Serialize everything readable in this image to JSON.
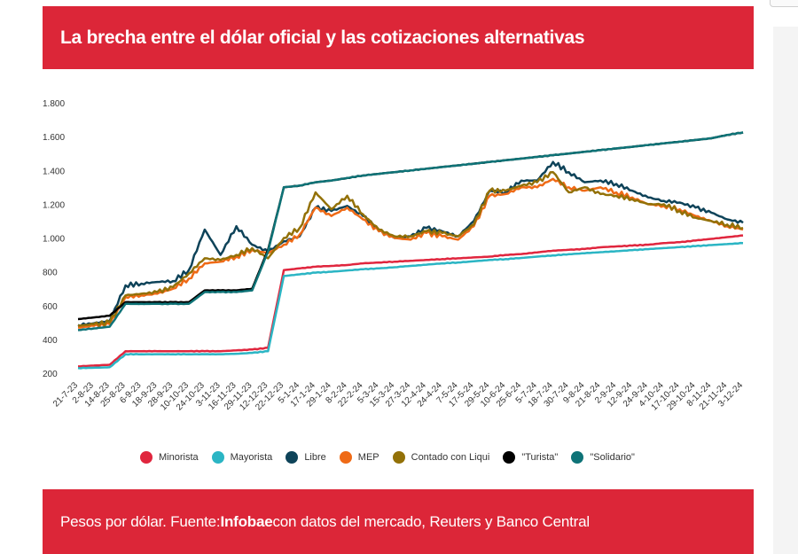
{
  "header": {
    "title": "La brecha entre el dólar oficial y las cotizaciones alternativas"
  },
  "footer": {
    "prefix": "Pesos por dólar. Fuente: ",
    "source": "Infobae",
    "suffix": " con datos del mercado, Reuters y Banco Central"
  },
  "chart_data": {
    "type": "line",
    "title": "La brecha entre el dólar oficial y las cotizaciones alternativas",
    "ylabel": "",
    "xlabel": "",
    "ylim": [
      200,
      1800
    ],
    "yticks": [
      200,
      400,
      600,
      800,
      1000,
      1200,
      1400,
      1600,
      1800
    ],
    "ytick_labels": [
      "200",
      "400",
      "600",
      "800",
      "1.000",
      "1.200",
      "1.400",
      "1.600",
      "1.800"
    ],
    "categories": [
      "21-7-23",
      "2-8-23",
      "14-8-23",
      "25-8-23",
      "6-9-23",
      "18-9-23",
      "28-9-23",
      "10-10-23",
      "24-10-23",
      "3-11-23",
      "16-11-23",
      "29-11-23",
      "12-12-23",
      "22-12-23",
      "5-1-24",
      "17-1-24",
      "29-1-24",
      "8-2-24",
      "22-2-24",
      "5-3-24",
      "15-3-24",
      "27-3-24",
      "12-4-24",
      "24-4-24",
      "7-5-24",
      "17-5-24",
      "29-5-24",
      "10-6-24",
      "25-6-24",
      "5-7-24",
      "18-7-24",
      "30-7-24",
      "9-8-24",
      "21-8-24",
      "2-9-24",
      "12-9-24",
      "24-9-24",
      "4-10-24",
      "17-10-24",
      "29-10-24",
      "8-11-24",
      "21-11-24",
      "3-12-24"
    ],
    "grid": false,
    "legend_position": "bottom",
    "series": [
      {
        "name": "Minorista",
        "color": "#e0263e",
        "values": [
          240,
          245,
          250,
          330,
          330,
          330,
          330,
          330,
          330,
          330,
          335,
          340,
          350,
          810,
          820,
          830,
          835,
          840,
          850,
          855,
          860,
          865,
          870,
          875,
          880,
          885,
          890,
          900,
          905,
          915,
          925,
          930,
          935,
          945,
          950,
          955,
          960,
          970,
          975,
          985,
          995,
          1005,
          1015
        ]
      },
      {
        "name": "Mayorista",
        "color": "#2bb5c4",
        "values": [
          230,
          232,
          235,
          312,
          312,
          312,
          312,
          312,
          312,
          312,
          315,
          320,
          330,
          775,
          785,
          795,
          800,
          808,
          815,
          820,
          827,
          835,
          842,
          850,
          855,
          862,
          870,
          875,
          882,
          890,
          897,
          904,
          910,
          916,
          922,
          928,
          934,
          940,
          946,
          952,
          958,
          964,
          970
        ]
      },
      {
        "name": "Libre",
        "color": "#0e4359",
        "values": [
          485,
          495,
          510,
          720,
          730,
          740,
          745,
          810,
          1050,
          900,
          1070,
          960,
          920,
          980,
          1010,
          1180,
          1160,
          1190,
          1130,
          1040,
          1000,
          1010,
          1060,
          1040,
          1010,
          1100,
          1280,
          1270,
          1340,
          1340,
          1450,
          1390,
          1330,
          1340,
          1320,
          1280,
          1240,
          1220,
          1210,
          1180,
          1150,
          1110,
          1090
        ]
      },
      {
        "name": "MEP",
        "color": "#ef6a16",
        "values": [
          470,
          480,
          490,
          650,
          660,
          670,
          700,
          760,
          850,
          860,
          890,
          930,
          910,
          960,
          1020,
          1180,
          1130,
          1180,
          1110,
          1040,
          1000,
          990,
          1030,
          1010,
          990,
          1070,
          1250,
          1260,
          1300,
          1300,
          1350,
          1300,
          1280,
          1300,
          1270,
          1240,
          1200,
          1190,
          1170,
          1130,
          1100,
          1070,
          1050
        ]
      },
      {
        "name": "Contado con Liqui",
        "color": "#937108",
        "values": [
          480,
          490,
          500,
          660,
          670,
          680,
          710,
          790,
          880,
          870,
          900,
          940,
          880,
          1000,
          1060,
          1270,
          1170,
          1250,
          1140,
          1050,
          1010,
          1010,
          1040,
          1030,
          1010,
          1080,
          1280,
          1280,
          1310,
          1330,
          1390,
          1270,
          1300,
          1260,
          1250,
          1230,
          1200,
          1200,
          1160,
          1120,
          1100,
          1080,
          1060
        ]
      },
      {
        "name": "\"Turista\"",
        "color": "#000000",
        "values": [
          520,
          530,
          540,
          620,
          620,
          620,
          620,
          620,
          690,
          690,
          690,
          700,
          930,
          1300,
          1310,
          1330,
          1340,
          1355,
          1370,
          1380,
          1390,
          1400,
          1410,
          1420,
          1430,
          1440,
          1450,
          1460,
          1470,
          1480,
          1490,
          1500,
          1510,
          1520,
          1530,
          1540,
          1550,
          1560,
          1570,
          1580,
          1590,
          1610,
          1625
        ]
      },
      {
        "name": "\"Solidario\"",
        "color": "#0e7377",
        "values": [
          455,
          465,
          475,
          610,
          610,
          610,
          610,
          610,
          680,
          680,
          680,
          690,
          920,
          1300,
          1310,
          1330,
          1340,
          1355,
          1370,
          1380,
          1390,
          1400,
          1410,
          1420,
          1430,
          1440,
          1450,
          1460,
          1470,
          1480,
          1490,
          1500,
          1510,
          1520,
          1530,
          1540,
          1550,
          1560,
          1570,
          1580,
          1590,
          1610,
          1625
        ]
      }
    ]
  }
}
